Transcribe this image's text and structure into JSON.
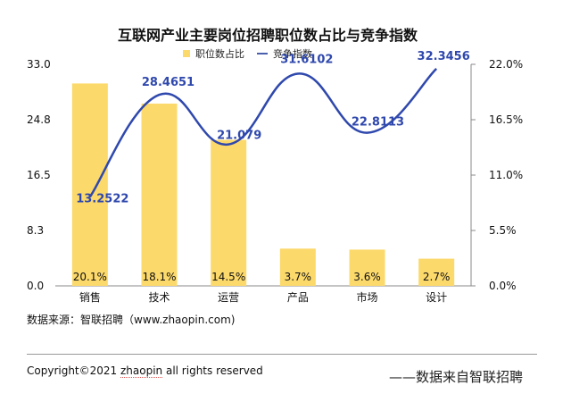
{
  "chart_data": {
    "type": "bar",
    "title": "互联网产业主要岗位招聘职位数占比与竞争指数",
    "categories": [
      "销售",
      "技术",
      "运营",
      "产品",
      "市场",
      "设计"
    ],
    "series": [
      {
        "name": "职位数占比",
        "type": "bar",
        "axis": "right",
        "values": [
          20.1,
          18.1,
          14.5,
          3.7,
          3.6,
          2.7
        ],
        "labels": [
          "20.1%",
          "18.1%",
          "14.5%",
          "3.7%",
          "3.6%",
          "2.7%"
        ],
        "color": "#fcd96b"
      },
      {
        "name": "竞争指数",
        "type": "line",
        "axis": "left",
        "smooth": true,
        "values": [
          13.2522,
          28.4651,
          21.079,
          31.6102,
          22.8113,
          32.3456
        ],
        "labels": [
          "13.2522",
          "28.4651",
          "21.079",
          "31.6102",
          "22.8113",
          "32.3456"
        ],
        "color": "#2f48ad"
      }
    ],
    "y_left": {
      "min": 0,
      "max": 33,
      "ticks": [
        "0.0",
        "8.3",
        "16.5",
        "24.8",
        "33.0"
      ]
    },
    "y_right": {
      "min": 0,
      "max": 22,
      "ticks": [
        "0.0%",
        "5.5%",
        "11.0%",
        "16.5%",
        "22.0%"
      ]
    },
    "grid": false,
    "legend_placement": "top"
  },
  "legend": {
    "bar_label": "职位数占比",
    "line_label": "竞争指数"
  },
  "source": "数据来源：智联招聘（www.zhaopin.com)",
  "footer": {
    "copyright_prefix": "Copyright©2021 ",
    "copyright_brand": "zhaopin",
    "copyright_suffix": " all rights reserved",
    "attribution": "——数据来自智联招聘"
  }
}
